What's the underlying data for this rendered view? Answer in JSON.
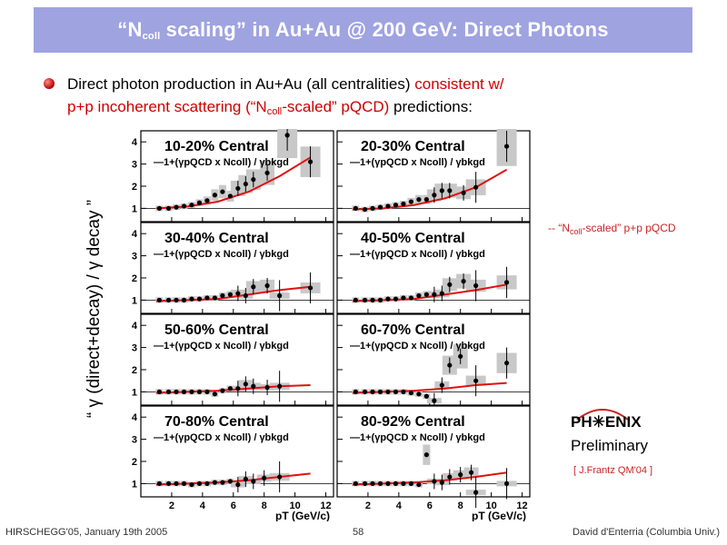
{
  "slide": {
    "title_prefix": "“N",
    "title_sub": "coll",
    "title_suffix": " scaling” in Au+Au @ 200 GeV: Direct Photons",
    "bullet": {
      "black1": "Direct photon production in Au+Au (all centralities) ",
      "red1": "consistent w/",
      "red2a": "p+p incoherent scattering (“N",
      "red2sub": "coll",
      "red2b": "-scaled” pQCD)",
      "black2": " predictions:"
    },
    "side_legend_prefix": "-- “N",
    "side_legend_sub": "coll",
    "side_legend_suffix": "-scaled” p+p pQCD",
    "phenix": "PH✳ENIX",
    "preliminary": "Preliminary",
    "reference": "[ J.Frantz QM'04 ]",
    "footer": {
      "left": "HIRSCHEGG'05, January 19th 2005",
      "center": "58",
      "right": "David d'Enterria (Columbia Univ.)"
    },
    "colors": {
      "title_bg": "#9fa3e0",
      "accent_red": "#cc0000",
      "band": "#c8c8c8"
    }
  },
  "chart_data": {
    "type": "scatter",
    "ylabel": "“ γ (direct+decay) / γ decay ”",
    "xlabel": "pT (GeV/c)",
    "xlim": [
      0,
      12.5
    ],
    "ylim": [
      0.4,
      4.5
    ],
    "x_ticks": [
      2,
      4,
      6,
      8,
      10,
      12
    ],
    "y_ticks": [
      1,
      2,
      3,
      4
    ],
    "reference_line_y": 1,
    "curve_label": "1+(γpQCD x Ncoll) / γbkgd",
    "panels": [
      {
        "label": "10-20% Central",
        "curve": [
          [
            1,
            1.0
          ],
          [
            3,
            1.08
          ],
          [
            5,
            1.3
          ],
          [
            7,
            1.75
          ],
          [
            9,
            2.45
          ],
          [
            11,
            3.3
          ]
        ],
        "points": [
          [
            1.2,
            1.0
          ],
          [
            1.8,
            1.0
          ],
          [
            2.3,
            1.05
          ],
          [
            2.8,
            1.1
          ],
          [
            3.3,
            1.15
          ],
          [
            3.8,
            1.25
          ],
          [
            4.3,
            1.35
          ],
          [
            4.8,
            1.6
          ],
          [
            5.3,
            1.75
          ],
          [
            5.8,
            1.55
          ],
          [
            6.3,
            1.9
          ],
          [
            6.8,
            2.1
          ],
          [
            7.3,
            2.3
          ],
          [
            8.2,
            2.6
          ],
          [
            9.5,
            4.3
          ],
          [
            11,
            3.1
          ]
        ]
      },
      {
        "label": "20-30% Central",
        "curve": [
          [
            1,
            0.95
          ],
          [
            3,
            1.0
          ],
          [
            5,
            1.15
          ],
          [
            7,
            1.45
          ],
          [
            9,
            1.95
          ],
          [
            11,
            2.75
          ]
        ],
        "points": [
          [
            1.2,
            1.0
          ],
          [
            1.8,
            0.95
          ],
          [
            2.3,
            1.0
          ],
          [
            2.8,
            1.05
          ],
          [
            3.3,
            1.1
          ],
          [
            3.8,
            1.15
          ],
          [
            4.3,
            1.2
          ],
          [
            4.8,
            1.3
          ],
          [
            5.3,
            1.4
          ],
          [
            5.8,
            1.4
          ],
          [
            6.3,
            1.6
          ],
          [
            6.8,
            1.8
          ],
          [
            7.3,
            1.8
          ],
          [
            8.2,
            1.7
          ],
          [
            9,
            1.95
          ],
          [
            11,
            3.8
          ]
        ]
      },
      {
        "label": "30-40% Central",
        "curve": [
          [
            1,
            0.95
          ],
          [
            3,
            1.0
          ],
          [
            5,
            1.05
          ],
          [
            7,
            1.25
          ],
          [
            9,
            1.45
          ],
          [
            11,
            1.6
          ]
        ],
        "points": [
          [
            1.2,
            1.0
          ],
          [
            1.8,
            1.0
          ],
          [
            2.3,
            1.0
          ],
          [
            2.8,
            1.0
          ],
          [
            3.3,
            1.05
          ],
          [
            3.8,
            1.05
          ],
          [
            4.3,
            1.1
          ],
          [
            4.8,
            1.1
          ],
          [
            5.3,
            1.2
          ],
          [
            5.8,
            1.25
          ],
          [
            6.3,
            1.3
          ],
          [
            6.8,
            1.2
          ],
          [
            7.3,
            1.6
          ],
          [
            8.2,
            1.65
          ],
          [
            9,
            1.2
          ],
          [
            11,
            1.55
          ]
        ]
      },
      {
        "label": "40-50% Central",
        "curve": [
          [
            1,
            0.95
          ],
          [
            3,
            1.0
          ],
          [
            5,
            1.05
          ],
          [
            7,
            1.25
          ],
          [
            9,
            1.45
          ],
          [
            11,
            1.7
          ]
        ],
        "points": [
          [
            1.2,
            1.0
          ],
          [
            1.8,
            1.0
          ],
          [
            2.3,
            1.0
          ],
          [
            2.8,
            1.0
          ],
          [
            3.3,
            1.05
          ],
          [
            3.8,
            1.05
          ],
          [
            4.3,
            1.1
          ],
          [
            4.8,
            1.1
          ],
          [
            5.3,
            1.2
          ],
          [
            5.8,
            1.25
          ],
          [
            6.3,
            1.25
          ],
          [
            6.8,
            1.3
          ],
          [
            7.3,
            1.7
          ],
          [
            8.2,
            1.85
          ],
          [
            9,
            1.65
          ],
          [
            11,
            1.8
          ]
        ]
      },
      {
        "label": "50-60% Central",
        "curve": [
          [
            1,
            0.95
          ],
          [
            3,
            1.0
          ],
          [
            5,
            1.05
          ],
          [
            7,
            1.15
          ],
          [
            9,
            1.25
          ],
          [
            11,
            1.3
          ]
        ],
        "points": [
          [
            1.2,
            1.0
          ],
          [
            1.8,
            1.0
          ],
          [
            2.3,
            1.0
          ],
          [
            2.8,
            1.0
          ],
          [
            3.3,
            1.0
          ],
          [
            3.8,
            1.0
          ],
          [
            4.3,
            1.0
          ],
          [
            4.8,
            0.9
          ],
          [
            5.3,
            1.05
          ],
          [
            5.8,
            1.15
          ],
          [
            6.3,
            1.15
          ],
          [
            6.8,
            1.35
          ],
          [
            7.3,
            1.25
          ],
          [
            8.2,
            1.2
          ],
          [
            9,
            1.25
          ]
        ]
      },
      {
        "label": "60-70% Central",
        "curve": [
          [
            1,
            0.95
          ],
          [
            3,
            1.0
          ],
          [
            5,
            1.05
          ],
          [
            7,
            1.15
          ],
          [
            9,
            1.3
          ],
          [
            11,
            1.4
          ]
        ],
        "points": [
          [
            1.2,
            1.0
          ],
          [
            1.8,
            1.0
          ],
          [
            2.3,
            1.0
          ],
          [
            2.8,
            1.0
          ],
          [
            3.3,
            1.0
          ],
          [
            3.8,
            1.0
          ],
          [
            4.3,
            1.0
          ],
          [
            4.8,
            0.95
          ],
          [
            5.3,
            0.9
          ],
          [
            5.8,
            0.8
          ],
          [
            6.3,
            0.6
          ],
          [
            6.8,
            1.3
          ],
          [
            7.3,
            2.2
          ],
          [
            8,
            2.6
          ],
          [
            9,
            1.5
          ],
          [
            11,
            2.3
          ]
        ]
      },
      {
        "label": "70-80% Central",
        "curve": [
          [
            1,
            0.95
          ],
          [
            3,
            1.0
          ],
          [
            5,
            1.05
          ],
          [
            7,
            1.15
          ],
          [
            9,
            1.3
          ],
          [
            11,
            1.45
          ]
        ],
        "points": [
          [
            1.2,
            1.0
          ],
          [
            1.8,
            1.0
          ],
          [
            2.3,
            1.0
          ],
          [
            2.8,
            1.0
          ],
          [
            3.3,
            0.95
          ],
          [
            3.8,
            1.0
          ],
          [
            4.3,
            1.0
          ],
          [
            4.8,
            1.05
          ],
          [
            5.3,
            1.05
          ],
          [
            5.8,
            1.1
          ],
          [
            6.3,
            0.95
          ],
          [
            6.8,
            1.2
          ],
          [
            7.3,
            1.1
          ],
          [
            8,
            1.25
          ],
          [
            9,
            1.3
          ]
        ]
      },
      {
        "label": "80-92% Central",
        "curve": [
          [
            1,
            0.95
          ],
          [
            3,
            1.0
          ],
          [
            5,
            1.05
          ],
          [
            7,
            1.15
          ],
          [
            9,
            1.3
          ],
          [
            11,
            1.5
          ]
        ],
        "points": [
          [
            1.2,
            1.0
          ],
          [
            1.8,
            1.0
          ],
          [
            2.3,
            1.0
          ],
          [
            2.8,
            1.0
          ],
          [
            3.3,
            1.0
          ],
          [
            3.8,
            1.0
          ],
          [
            4.3,
            1.0
          ],
          [
            4.8,
            1.0
          ],
          [
            5.3,
            0.95
          ],
          [
            5.8,
            2.3
          ],
          [
            6.3,
            1.1
          ],
          [
            6.8,
            1.05
          ],
          [
            7.3,
            1.3
          ],
          [
            8,
            1.4
          ],
          [
            8.7,
            1.5
          ],
          [
            9,
            0.6
          ],
          [
            11,
            1.0
          ]
        ]
      }
    ]
  }
}
